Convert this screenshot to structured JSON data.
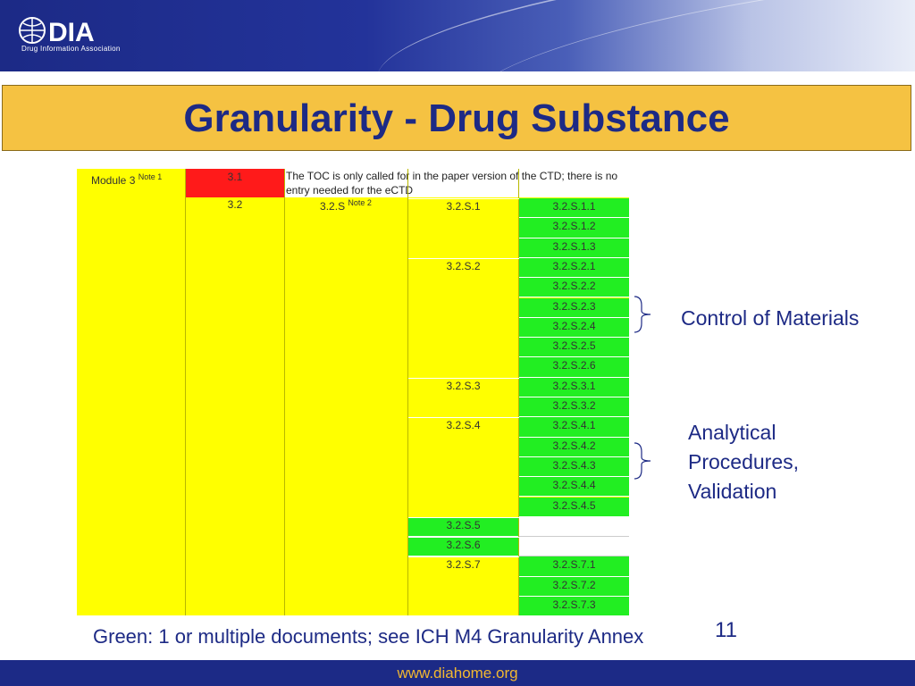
{
  "header": {
    "logo_text": "DIA",
    "logo_subtitle": "Drug Information Association"
  },
  "title": "Granularity - Drug Substance",
  "table": {
    "module": "Module 3",
    "module_note": "Note 1",
    "toc_code": "3.1",
    "toc_note": "The TOC is only called for in the paper version of the CTD; there is no entry needed for the eCTD",
    "level2": "3.2",
    "level3": "3.2.S",
    "level3_note": "Note 2",
    "sections": [
      {
        "label": "3.2.S.1",
        "subs": [
          "3.2.S.1.1",
          "3.2.S.1.2",
          "3.2.S.1.3"
        ]
      },
      {
        "label": "3.2.S.2",
        "subs": [
          "3.2.S.2.1",
          "3.2.S.2.2",
          "3.2.S.2.3",
          "3.2.S.2.4",
          "3.2.S.2.5",
          "3.2.S.2.6"
        ]
      },
      {
        "label": "3.2.S.3",
        "subs": [
          "3.2.S.3.1",
          "3.2.S.3.2"
        ]
      },
      {
        "label": "3.2.S.4",
        "subs": [
          "3.2.S.4.1",
          "3.2.S.4.2",
          "3.2.S.4.3",
          "3.2.S.4.4",
          "3.2.S.4.5"
        ]
      },
      {
        "label": "3.2.S.5",
        "subs": []
      },
      {
        "label": "3.2.S.6",
        "subs": []
      },
      {
        "label": "3.2.S.7",
        "subs": [
          "3.2.S.7.1",
          "3.2.S.7.2",
          "3.2.S.7.3"
        ]
      }
    ]
  },
  "annotations": {
    "control_of_materials": "Control of Materials",
    "analytical": [
      "Analytical",
      "Procedures,",
      "Validation"
    ]
  },
  "footnote": "Green: 1 or multiple documents; see ICH M4 Granularity Annex",
  "page_number": "11",
  "footer_url": "www.diahome.org",
  "colors": {
    "header_blue": "#1c2a86",
    "title_gold": "#f5c242",
    "cell_yellow": "#ffff00",
    "cell_green": "#22ee22",
    "cell_red": "#ff1a1a"
  }
}
